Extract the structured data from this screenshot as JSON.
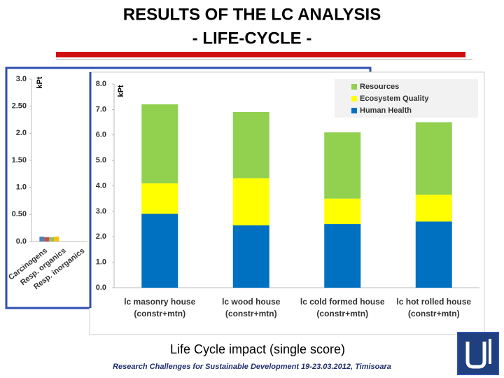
{
  "slide": {
    "title": [
      "RESULTS OF THE LC ANALYSIS",
      "- LIFE-CYCLE -"
    ],
    "caption": "Life Cycle impact (single score)",
    "footer": "Research Challenges for Sustainable Development 19-23.03.2012, Timisoara"
  },
  "chart_data": [
    {
      "type": "bar",
      "ylabel": "kPt",
      "categories": [
        [
          "Carcinogens"
        ],
        [
          "Resp. organics"
        ],
        [
          "Resp. inorganics"
        ]
      ],
      "series": [
        {
          "color": "#4f81bd",
          "values": [
            0.09,
            0,
            0
          ]
        },
        {
          "color": "#c0504d",
          "values": [
            0.08,
            0,
            0
          ]
        },
        {
          "color": "#9bbb59",
          "values": [
            0.08,
            0,
            0
          ]
        },
        {
          "color": "#fac000",
          "values": [
            0.09,
            0,
            0
          ]
        }
      ],
      "ylim": [
        0,
        3
      ],
      "yticks": [
        {
          "value": 0,
          "label": "0.0"
        },
        {
          "value": 0.5,
          "label": "0.50"
        },
        {
          "value": 1,
          "label": "1.0"
        },
        {
          "value": 1.5,
          "label": "1.50"
        },
        {
          "value": 2,
          "label": "2.0"
        },
        {
          "value": 2.5,
          "label": "2.50"
        },
        {
          "value": 3,
          "label": "3.0"
        }
      ]
    },
    {
      "type": "stacked_bar",
      "ylabel": "kPt",
      "categories": [
        [
          "lc masonry house",
          "(constr+mtn)"
        ],
        [
          "lc wood house",
          "(constr+mtn)"
        ],
        [
          "lc cold formed house",
          "(constr+mtn)"
        ],
        [
          "lc hot rolled house",
          "(constr+mtn)"
        ]
      ],
      "series": [
        {
          "name": "Human Health",
          "color": "#0070c0",
          "values": [
            2.9,
            2.45,
            2.5,
            2.6
          ]
        },
        {
          "name": "Ecosystem Quality",
          "color": "#ffff00",
          "values": [
            1.2,
            1.85,
            1.0,
            1.05
          ]
        },
        {
          "name": "Resources",
          "color": "#92d050",
          "values": [
            3.1,
            2.6,
            2.6,
            2.85
          ]
        }
      ],
      "ylim": [
        0,
        8
      ],
      "yticks": [
        {
          "value": 0,
          "label": "0.0"
        },
        {
          "value": 1,
          "label": "1.0"
        },
        {
          "value": 2,
          "label": "2.0"
        },
        {
          "value": 3,
          "label": "3.0"
        },
        {
          "value": 4,
          "label": "4.0"
        },
        {
          "value": 5,
          "label": "5.0"
        },
        {
          "value": 6,
          "label": "6.0"
        },
        {
          "value": 7,
          "label": "7.0"
        },
        {
          "value": 8,
          "label": "8.0"
        }
      ],
      "legend": "top-right"
    }
  ]
}
